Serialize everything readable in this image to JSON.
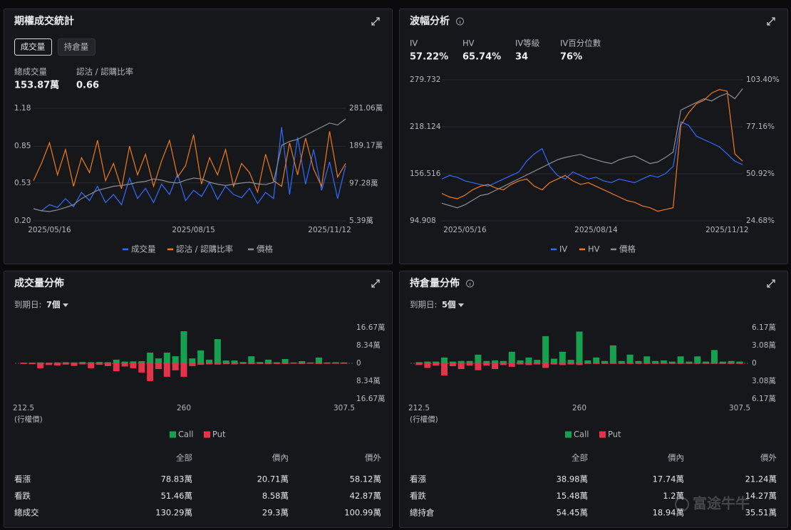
{
  "panels": [
    {
      "title": "期權成交統計",
      "tabs": [
        "成交量",
        "持倉量"
      ],
      "stats": [
        {
          "label": "總成交量",
          "value": "153.87萬"
        },
        {
          "label": "認沽 / 認購比率",
          "value": "0.66"
        }
      ]
    },
    {
      "title": "波幅分析",
      "stats": [
        {
          "label": "IV",
          "value": "57.22%"
        },
        {
          "label": "HV",
          "value": "65.74%"
        },
        {
          "label": "IV等級",
          "value": "34"
        },
        {
          "label": "IV百分位數",
          "value": "76%"
        }
      ]
    },
    {
      "title": "成交量分佈",
      "expiry_label": "到期日:",
      "expiry_value": "7個",
      "x_axis_note": "(行權價)",
      "table": {
        "columns": [
          "全部",
          "價內",
          "價外"
        ],
        "rows": [
          [
            "看漲",
            "78.83萬",
            "20.71萬",
            "58.12萬"
          ],
          [
            "看跌",
            "51.46萬",
            "8.58萬",
            "42.87萬"
          ],
          [
            "總成交",
            "130.29萬",
            "29.3萬",
            "100.99萬"
          ]
        ]
      }
    },
    {
      "title": "持倉量分佈",
      "expiry_label": "到期日:",
      "expiry_value": "5個",
      "x_axis_note": "(行權價)",
      "table": {
        "columns": [
          "全部",
          "價內",
          "價外"
        ],
        "rows": [
          [
            "看漲",
            "38.98萬",
            "17.74萬",
            "21.24萬"
          ],
          [
            "看跌",
            "15.48萬",
            "1.2萬",
            "14.27萬"
          ],
          [
            "總持倉",
            "54.45萬",
            "18.94萬",
            "35.51萬"
          ]
        ]
      }
    }
  ],
  "chart_data": [
    {
      "type": "line",
      "grid": true,
      "categories": [
        null,
        null,
        "2025/05/16",
        null,
        null,
        null,
        null,
        null,
        null,
        null,
        null,
        null,
        null,
        null,
        null,
        null,
        null,
        null,
        null,
        null,
        "2025/08/15",
        null,
        null,
        null,
        null,
        null,
        null,
        null,
        null,
        null,
        null,
        null,
        null,
        null,
        null,
        null,
        null,
        "2025/11/12",
        null,
        null
      ],
      "ylim": [
        0.2,
        1.18
      ],
      "yticks": [
        {
          "value": 0.2,
          "label": "0.20"
        },
        0.53,
        0.85,
        1.18
      ],
      "y2lim": [
        5.39,
        281.06
      ],
      "y2ticks": [
        {
          "value": 5.39,
          "label": "5.39萬"
        },
        {
          "value": 97.28,
          "label": "97.28萬"
        },
        {
          "value": 189.17,
          "label": "189.17萬"
        },
        {
          "value": 281.06,
          "label": "281.06萬"
        }
      ],
      "series": [
        {
          "name": "成交量",
          "color": "#2f6bff",
          "axis": "y2",
          "values": [
            35,
            30,
            45,
            38,
            60,
            40,
            75,
            55,
            90,
            50,
            70,
            45,
            110,
            60,
            85,
            50,
            95,
            70,
            120,
            55,
            80,
            65,
            100,
            58,
            90,
            70,
            62,
            85,
            48,
            75,
            60,
            235,
            70,
            210,
            95,
            180,
            80,
            150,
            60,
            140
          ]
        },
        {
          "name": "認沽 / 認購比率",
          "color": "#f07a1a",
          "values": [
            0.55,
            0.7,
            0.88,
            0.6,
            0.82,
            0.5,
            0.75,
            0.62,
            0.9,
            0.55,
            0.7,
            0.48,
            0.85,
            0.6,
            0.78,
            0.5,
            0.72,
            0.9,
            0.58,
            0.68,
            0.95,
            0.52,
            0.75,
            0.6,
            0.82,
            0.5,
            0.7,
            0.62,
            0.45,
            0.78,
            0.55,
            0.5,
            0.88,
            0.6,
            0.92,
            0.65,
            0.5,
            0.98,
            0.58,
            0.7
          ]
        },
        {
          "name": "價格",
          "color": "#8a8d94",
          "axis": "y2",
          "values": [
            35,
            30,
            28,
            32,
            38,
            45,
            60,
            70,
            80,
            85,
            90,
            92,
            95,
            100,
            102,
            108,
            105,
            100,
            98,
            105,
            110,
            108,
            100,
            95,
            92,
            95,
            98,
            100,
            96,
            94,
            100,
            190,
            200,
            205,
            215,
            225,
            235,
            245,
            240,
            255
          ]
        }
      ]
    },
    {
      "type": "line",
      "grid": true,
      "categories": [
        null,
        null,
        null,
        "2025/05/16",
        null,
        null,
        null,
        null,
        null,
        null,
        null,
        null,
        null,
        null,
        null,
        null,
        null,
        null,
        null,
        null,
        "2025/08/14",
        null,
        null,
        null,
        null,
        null,
        null,
        null,
        null,
        null,
        null,
        null,
        null,
        null,
        null,
        null,
        null,
        "2025/11/12",
        null,
        null
      ],
      "ylim": [
        94.908,
        279.732
      ],
      "yticks": [
        94.908,
        156.516,
        218.124,
        279.732
      ],
      "y2lim": [
        24.68,
        103.4
      ],
      "y2ticks": [
        {
          "value": 24.68,
          "label": "24.68%"
        },
        {
          "value": 50.92,
          "label": "50.92%"
        },
        {
          "value": 77.16,
          "label": "77.16%"
        },
        {
          "value": 103.4,
          "label": "103.40%"
        }
      ],
      "series": [
        {
          "name": "IV",
          "color": "#2f6bff",
          "axis": "y2",
          "values": [
            48,
            50,
            49,
            47,
            46,
            45,
            44,
            46,
            48,
            50,
            52,
            58,
            62,
            65,
            55,
            50,
            48,
            52,
            50,
            48,
            49,
            47,
            46,
            48,
            47,
            46,
            48,
            50,
            49,
            51,
            55,
            80,
            78,
            72,
            70,
            68,
            66,
            62,
            58,
            56
          ]
        },
        {
          "name": "HV",
          "color": "#f07a1a",
          "axis": "y2",
          "values": [
            40,
            38,
            37,
            39,
            42,
            44,
            45,
            43,
            42,
            45,
            47,
            48,
            44,
            42,
            46,
            48,
            50,
            47,
            45,
            46,
            44,
            42,
            40,
            38,
            36,
            35,
            33,
            32,
            30,
            31,
            32,
            78,
            85,
            90,
            92,
            96,
            98,
            97,
            62,
            58
          ]
        },
        {
          "name": "價格",
          "color": "#8a8d94",
          "values": [
            118,
            115,
            112,
            116,
            122,
            128,
            130,
            135,
            140,
            145,
            150,
            155,
            160,
            165,
            170,
            175,
            178,
            180,
            182,
            178,
            175,
            172,
            170,
            175,
            178,
            180,
            175,
            170,
            172,
            178,
            185,
            240,
            245,
            250,
            255,
            252,
            258,
            262,
            255,
            268
          ]
        }
      ]
    },
    {
      "type": "bar",
      "x": [
        212.5,
        215,
        217.5,
        220,
        222.5,
        225,
        227.5,
        230,
        232.5,
        235,
        237.5,
        240,
        242.5,
        245,
        247.5,
        250,
        252.5,
        255,
        257.5,
        260,
        262.5,
        265,
        267.5,
        270,
        272.5,
        275,
        277.5,
        280,
        282.5,
        285,
        287.5,
        290,
        292.5,
        295,
        297.5,
        300,
        302.5,
        305,
        307.5
      ],
      "xlim": [
        212.5,
        307.5
      ],
      "xticks": [
        212.5,
        260,
        307.5
      ],
      "ylim": [
        -16.67,
        16.67
      ],
      "yticks": [
        {
          "value": 16.67,
          "label": "16.67萬"
        },
        {
          "value": 8.34,
          "label": "8.34萬"
        },
        0,
        {
          "value": -8.34,
          "label": "8.34萬"
        },
        {
          "value": -16.67,
          "label": "16.67萬"
        }
      ],
      "series": [
        {
          "name": "Call",
          "color": "#16a150",
          "values": [
            0.3,
            0.3,
            0.4,
            0.3,
            0.4,
            0.5,
            0.4,
            0.6,
            0.5,
            0.6,
            0.5,
            1.7,
            0.8,
            0.9,
            1.0,
            5.0,
            2.3,
            5.0,
            3.3,
            15.0,
            2.3,
            6.0,
            1.7,
            11.3,
            1.3,
            1.3,
            0.6,
            3.3,
            0.6,
            1.7,
            0.5,
            2.0,
            0.4,
            1.0,
            0.4,
            2.7,
            0.4,
            0.5,
            0.4
          ]
        },
        {
          "name": "Put",
          "color": "#e5334b",
          "values": [
            -0.3,
            -0.4,
            -2.3,
            -0.8,
            -1.0,
            -0.6,
            -1.2,
            -0.5,
            -2.3,
            -0.7,
            -1.3,
            -3.7,
            -1.5,
            -2.3,
            -4.3,
            -8.3,
            -2.7,
            -6.3,
            -3.3,
            -6.3,
            -1.3,
            -0.7,
            -0.5,
            -0.6,
            -0.4,
            -0.5,
            -0.3,
            -0.4,
            -0.3,
            -0.4,
            -0.3,
            -0.3,
            -0.2,
            -0.3,
            -0.2,
            -0.3,
            -0.2,
            -0.2,
            -0.2
          ]
        }
      ]
    },
    {
      "type": "bar",
      "x": [
        212.5,
        215,
        217.5,
        220,
        222.5,
        225,
        227.5,
        230,
        232.5,
        235,
        237.5,
        240,
        242.5,
        245,
        247.5,
        250,
        252.5,
        255,
        257.5,
        260,
        262.5,
        265,
        267.5,
        270,
        272.5,
        275,
        277.5,
        280,
        282.5,
        285,
        287.5,
        290,
        292.5,
        295,
        297.5,
        300,
        302.5,
        305,
        307.5
      ],
      "xlim": [
        212.5,
        307.5
      ],
      "xticks": [
        212.5,
        260,
        307.5
      ],
      "ylim": [
        -6.17,
        6.17
      ],
      "yticks": [
        {
          "value": 6.17,
          "label": "6.17萬"
        },
        {
          "value": 3.08,
          "label": "3.08萬"
        },
        0,
        {
          "value": -3.08,
          "label": "3.08萬"
        },
        {
          "value": -6.17,
          "label": "6.17萬"
        }
      ],
      "series": [
        {
          "name": "Call",
          "color": "#16a150",
          "values": [
            0.2,
            0.3,
            0.3,
            1.0,
            0.3,
            0.4,
            0.4,
            1.5,
            0.4,
            0.5,
            0.4,
            2.0,
            0.5,
            1.0,
            0.6,
            4.7,
            0.8,
            2.0,
            0.6,
            5.5,
            0.5,
            1.0,
            0.4,
            3.1,
            0.4,
            1.5,
            0.4,
            1.2,
            0.4,
            0.5,
            0.3,
            1.2,
            0.3,
            1.2,
            0.3,
            2.3,
            0.3,
            0.4,
            0.3
          ]
        },
        {
          "name": "Put",
          "color": "#e5334b",
          "values": [
            -0.3,
            -0.8,
            -0.4,
            -2.1,
            -0.5,
            -1.0,
            -0.4,
            -1.2,
            -0.4,
            -1.0,
            -0.3,
            -0.6,
            -0.2,
            -0.3,
            -0.2,
            -0.8,
            -0.2,
            -0.3,
            -0.2,
            -0.3,
            -0.1,
            -0.1,
            -0.1,
            -0.1,
            -0.1,
            -0.1,
            -0.1,
            -0.1,
            -0.1,
            -0.1,
            -0.1,
            -0.1,
            -0.1,
            -0.1,
            -0.1,
            -0.1,
            -0.1,
            -0.1,
            -0.1
          ]
        }
      ]
    }
  ],
  "watermark": "富途牛牛"
}
